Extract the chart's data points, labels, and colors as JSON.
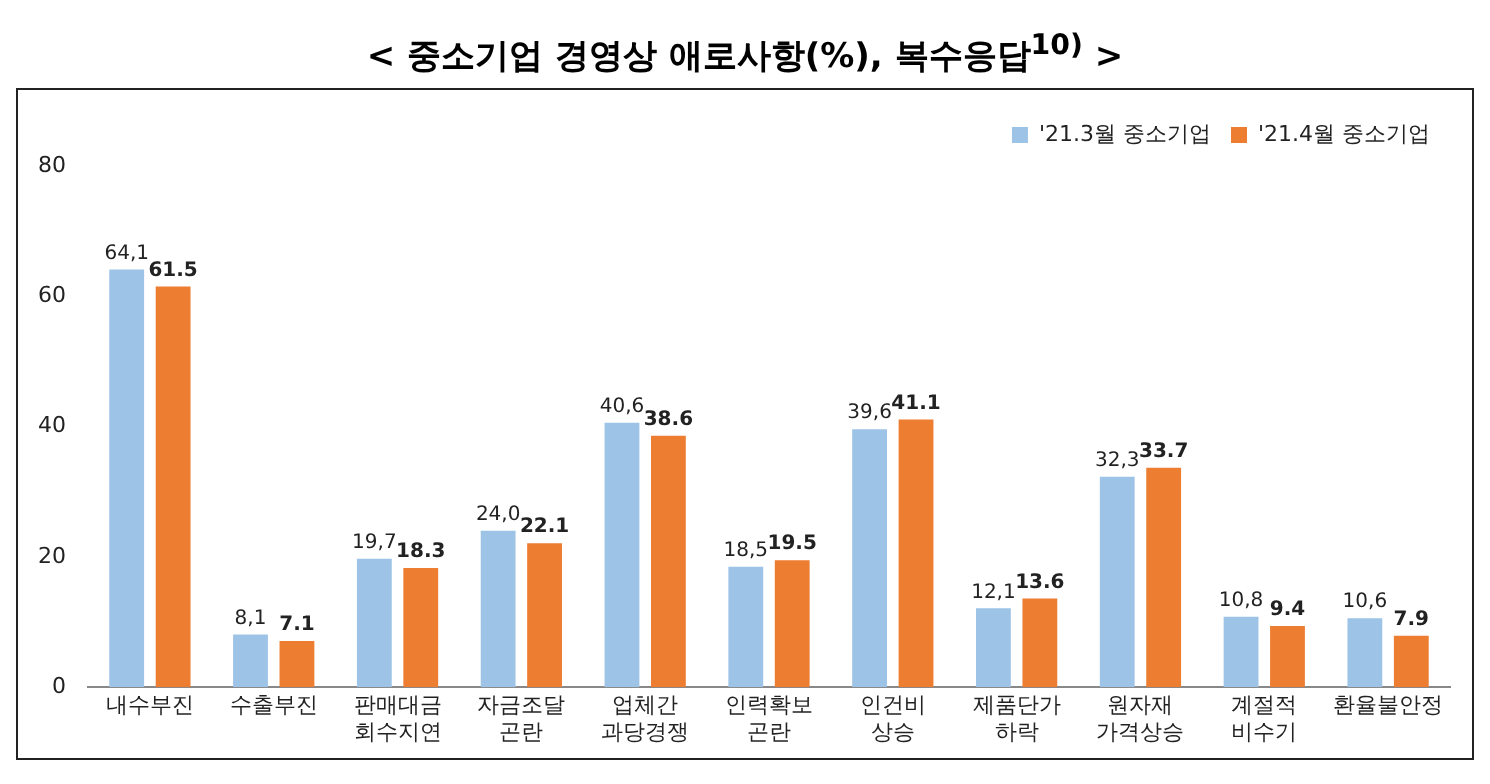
{
  "chart_data": {
    "type": "bar",
    "title": "< 중소기업 경영상 애로사항(%), 복수응답$^{10)}$ >",
    "categories": [
      "내수부진",
      "수출부진",
      "판매대금\n회수지연",
      "자금조달\n곤란",
      "업체간\n과당경쟁",
      "인력확보\n곤란",
      "인건비\n상승",
      "제품단가\n하락",
      "원자재\n가격상승",
      "계절적\n비수기",
      "환율불안정"
    ],
    "series": [
      {
        "name": "'21.3월 중소기업",
        "color": "#9dc3e6",
        "values": [
          64.1,
          8.1,
          19.7,
          24.0,
          40.6,
          18.5,
          39.6,
          12.1,
          32.3,
          10.8,
          10.6
        ],
        "value_labels": [
          "64,1",
          "8,1",
          "19,7",
          "24,0",
          "40,6",
          "18,5",
          "39,6",
          "12,1",
          "32,3",
          "10,8",
          "10,6"
        ]
      },
      {
        "name": "'21.4월 중소기업",
        "color": "#ed7d31",
        "values": [
          61.5,
          7.1,
          18.3,
          22.1,
          38.6,
          19.5,
          41.1,
          13.6,
          33.7,
          9.4,
          7.9
        ],
        "value_labels": [
          "61.5",
          "7.1",
          "18.3",
          "22.1",
          "38.6",
          "19.5",
          "41.1",
          "13.6",
          "33.7",
          "9.4",
          "7.9"
        ]
      }
    ],
    "ylim": [
      0,
      80
    ],
    "yticks": [
      0,
      20,
      40,
      60,
      80
    ],
    "grid": false,
    "legend": "top right"
  }
}
